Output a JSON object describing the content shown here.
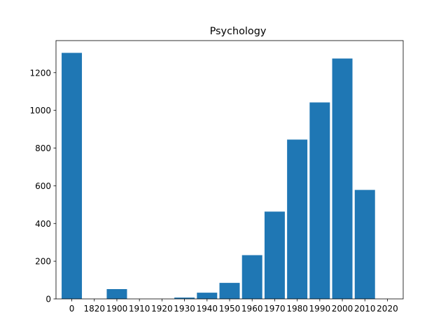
{
  "colors": {
    "bar": "#1f77b4",
    "axis": "#000000",
    "background": "#ffffff"
  },
  "chart_data": {
    "type": "bar",
    "title": "Psychology",
    "xlabel": "",
    "ylabel": "",
    "categories": [
      "0",
      "1820",
      "1900",
      "1910",
      "1920",
      "1930",
      "1940",
      "1950",
      "1960",
      "1970",
      "1980",
      "1990",
      "2000",
      "2010",
      "2020"
    ],
    "values": [
      1305,
      0,
      52,
      0,
      0,
      7,
      33,
      85,
      232,
      463,
      845,
      1042,
      1275,
      578,
      0
    ],
    "ylim": [
      0,
      1370
    ],
    "yticks": [
      0,
      200,
      400,
      600,
      800,
      1000,
      1200
    ],
    "grid": false,
    "legend": "none"
  }
}
